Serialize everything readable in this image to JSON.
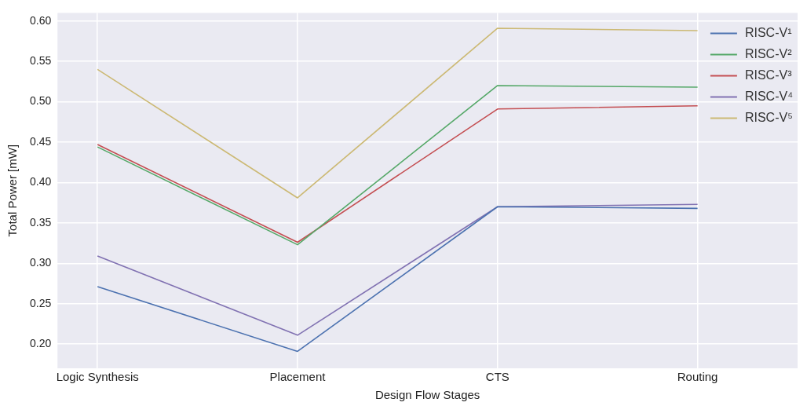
{
  "chart_data": {
    "type": "line",
    "xlabel": "Design Flow Stages",
    "ylabel": "Total Power [mW]",
    "categories": [
      "Logic Synthesis",
      "Placement",
      "CTS",
      "Routing"
    ],
    "ylim": [
      0.17,
      0.61
    ],
    "yticks": [
      {
        "value": 0.2,
        "label": "0.20"
      },
      {
        "value": 0.25,
        "label": "0.25"
      },
      {
        "value": 0.3,
        "label": "0.30"
      },
      {
        "value": 0.35,
        "label": "0.35"
      },
      {
        "value": 0.4,
        "label": "0.40"
      },
      {
        "value": 0.45,
        "label": "0.45"
      },
      {
        "value": 0.5,
        "label": "0.50"
      },
      {
        "value": 0.55,
        "label": "0.55"
      },
      {
        "value": 0.6,
        "label": "0.60"
      }
    ],
    "grid": true,
    "legend": "top right",
    "marker": "none",
    "line_style": "solid",
    "series": [
      {
        "name": "RISC-V¹",
        "color": "#4c72b0",
        "values": [
          0.271,
          0.191,
          0.37,
          0.368
        ]
      },
      {
        "name": "RISC-V²",
        "color": "#55a868",
        "values": [
          0.444,
          0.323,
          0.52,
          0.518
        ]
      },
      {
        "name": "RISC-V³",
        "color": "#c44e52",
        "values": [
          0.447,
          0.326,
          0.491,
          0.495
        ]
      },
      {
        "name": "RISC-V⁴",
        "color": "#8172b2",
        "values": [
          0.309,
          0.211,
          0.37,
          0.373
        ]
      },
      {
        "name": "RISC-V⁵",
        "color": "#ccb974",
        "values": [
          0.54,
          0.381,
          0.591,
          0.588
        ]
      }
    ]
  }
}
